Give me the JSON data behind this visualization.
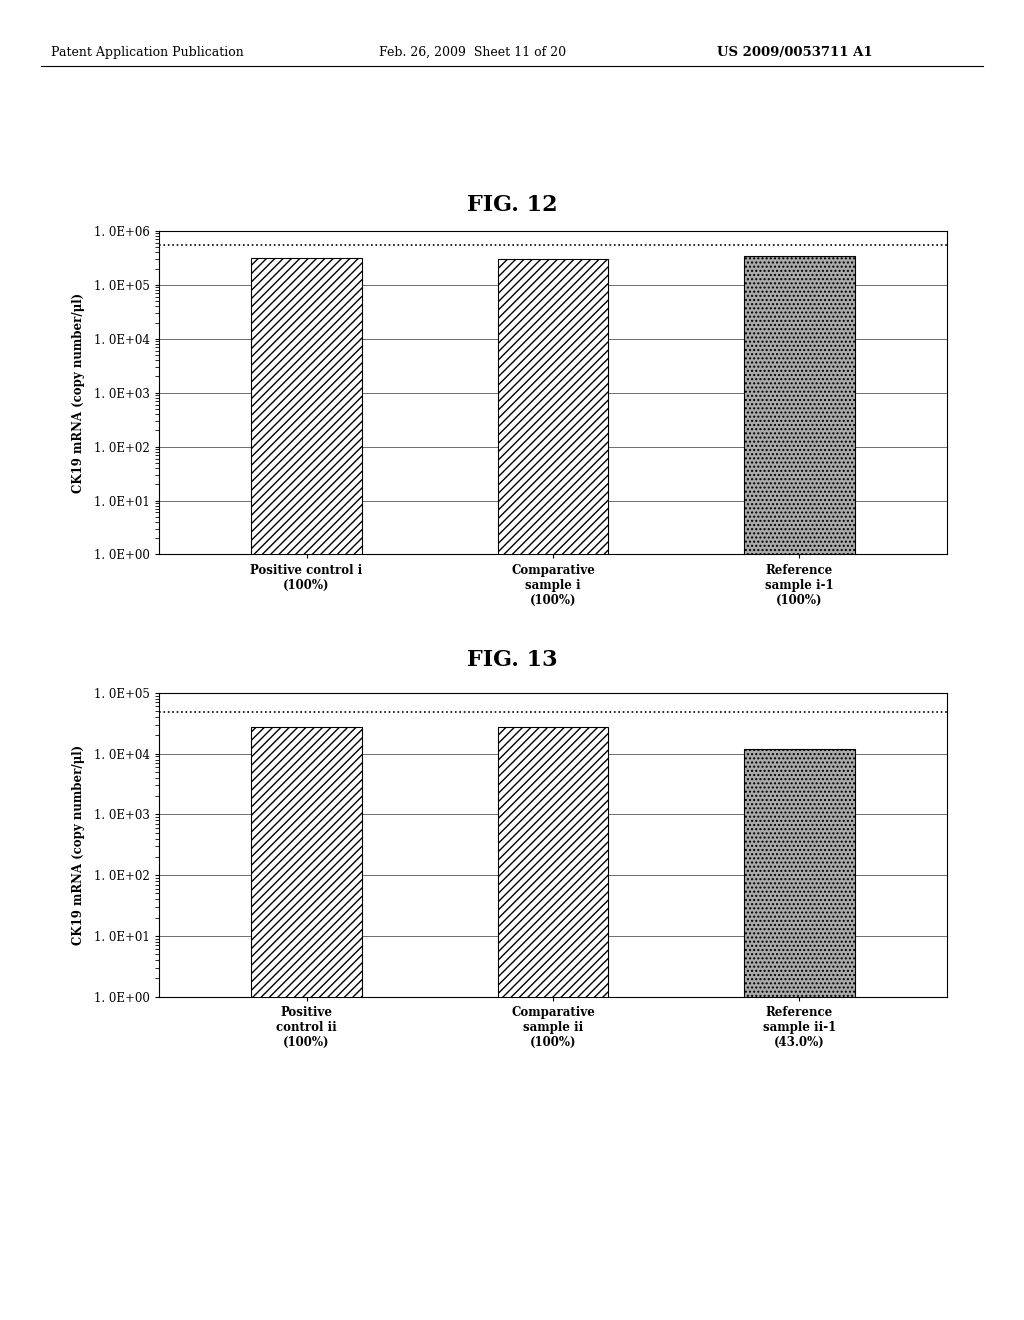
{
  "header_left": "Patent Application Publication",
  "header_mid": "Feb. 26, 2009  Sheet 11 of 20",
  "header_right": "US 2009/0053711 A1",
  "fig12_title": "FIG. 12",
  "fig13_title": "FIG. 13",
  "ylabel": "CK19 mRNA (copy number/μl)",
  "fig12": {
    "categories": [
      "Positive control i\n(100%)",
      "Comparative\nsample i\n(100%)",
      "Reference\nsample i-1\n(100%)"
    ],
    "values": [
      320000.0,
      300000.0,
      350000.0
    ],
    "dashed_line": 550000.0,
    "yticks": [
      1.0,
      10.0,
      100.0,
      1000.0,
      10000.0,
      100000.0,
      1000000.0
    ],
    "ytick_labels": [
      "1. 0E+00",
      "1. 0E+01",
      "1. 0E+02",
      "1. 0E+03",
      "1. 0E+04",
      "1. 0E+05",
      "1. 0E+06"
    ],
    "ymin": 1.0,
    "ymax": 1000000.0
  },
  "fig13": {
    "categories": [
      "Positive\ncontrol ii\n(100%)",
      "Comparative\nsample ii\n(100%)",
      "Reference\nsample ii-1\n(43.0%)"
    ],
    "values": [
      28000.0,
      28000.0,
      12000.0
    ],
    "dashed_line": 48000.0,
    "yticks": [
      1.0,
      10.0,
      100.0,
      1000.0,
      10000.0,
      100000.0
    ],
    "ytick_labels": [
      "1. 0E+00",
      "1. 0E+01",
      "1. 0E+02",
      "1. 0E+03",
      "1. 0E+04",
      "1. 0E+05"
    ],
    "ymin": 1.0,
    "ymax": 100000.0
  },
  "background_color": "#ffffff",
  "bar_positions": [
    1,
    2,
    3
  ],
  "bar_width": 0.45,
  "hatches_diag": [
    "////",
    "////"
  ],
  "hatch_dot": "....",
  "facecolor_diag": "white",
  "facecolor_dot": "#aaaaaa",
  "edgecolor": "black"
}
